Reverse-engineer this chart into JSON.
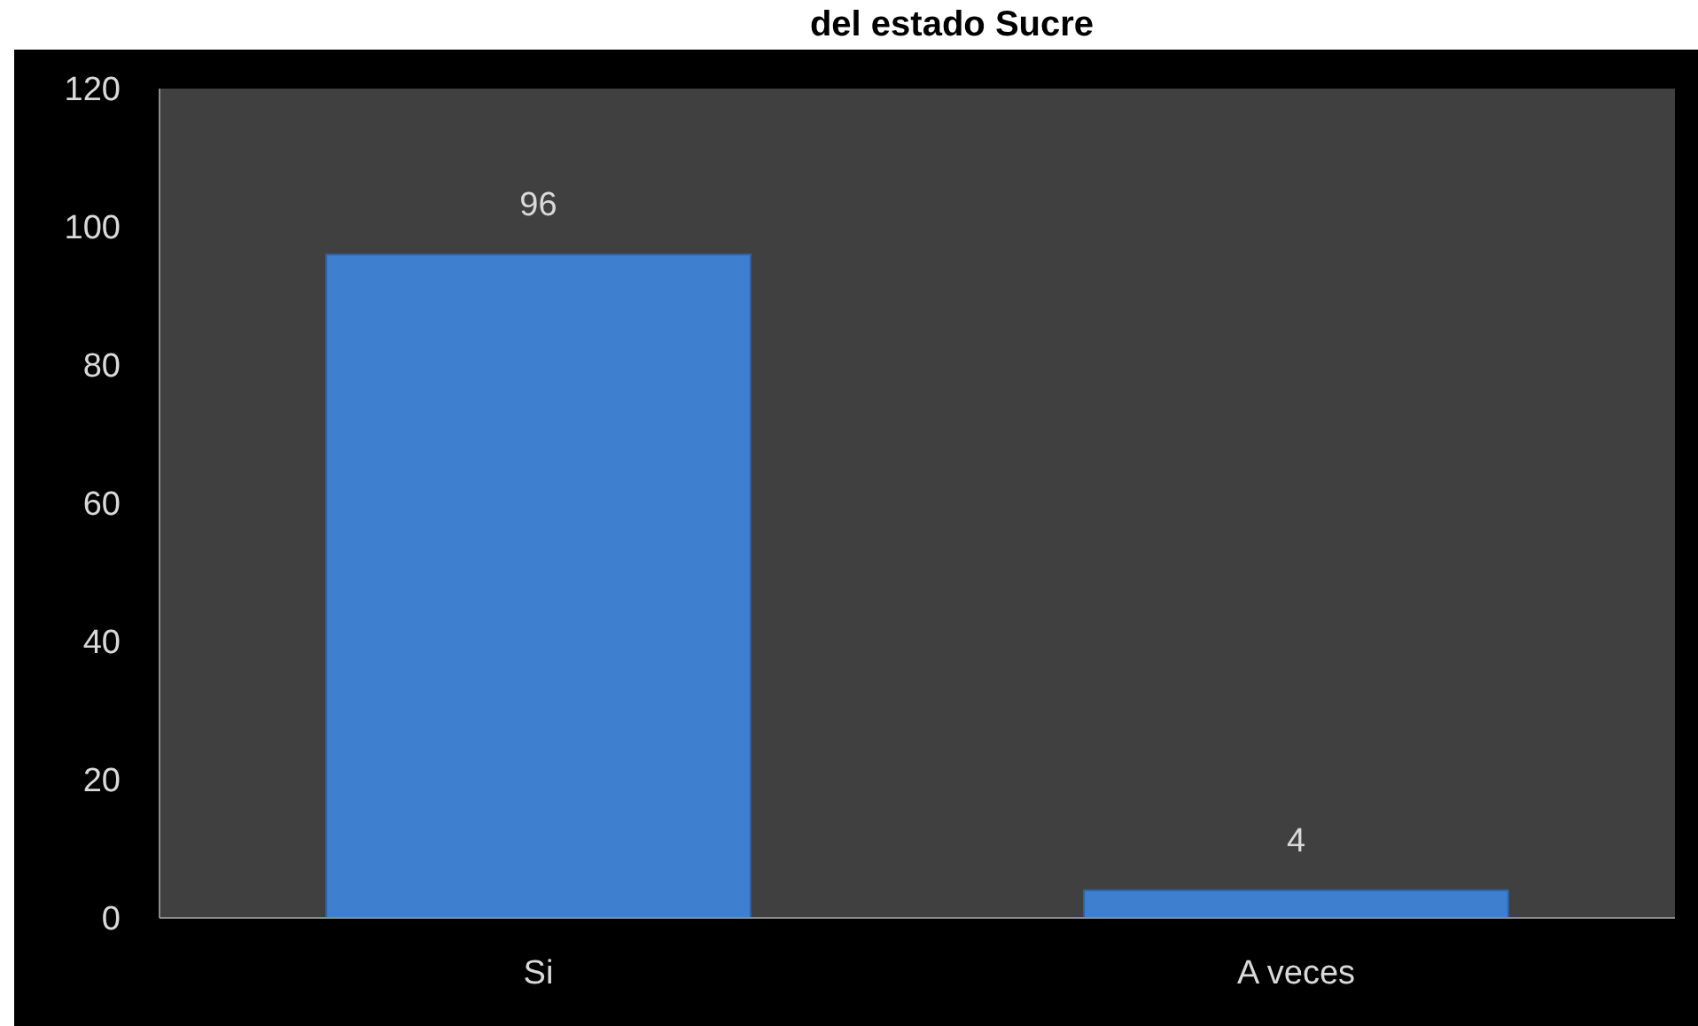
{
  "chart_data": {
    "type": "bar",
    "title": "del estado Sucre",
    "categories": [
      "Si",
      "A veces"
    ],
    "values": [
      96,
      4
    ],
    "color": "#3f7fcf",
    "ylim": [
      0,
      120
    ],
    "yticks": [
      0,
      20,
      40,
      60,
      80,
      100,
      120
    ],
    "grid": false,
    "data_labels": true
  }
}
